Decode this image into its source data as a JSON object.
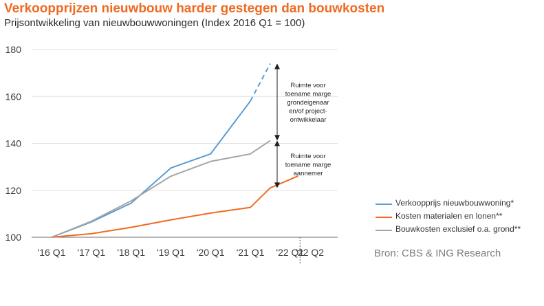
{
  "header": {
    "title": "Verkoopprijzen nieuwbouw harder gestegen dan bouwkosten",
    "subtitle": "Prijsontwikkeling van nieuwbouwwoningen  (Index 2016 Q1 = 100)"
  },
  "chart_data": {
    "type": "line",
    "categories": [
      "'16 Q1",
      "'17 Q1",
      "'18 Q1",
      "'19 Q1",
      "'20 Q1",
      "'21 Q1",
      "'22 Q1",
      "'22 Q2"
    ],
    "x": [
      0,
      1,
      2,
      3,
      4,
      5,
      6,
      6.5
    ],
    "ylim": [
      100,
      180
    ],
    "yticks": [
      100,
      120,
      140,
      160,
      180
    ],
    "grid": "horizontal",
    "legend_position": "bottom-right",
    "series": [
      {
        "name": "Verkoopprijs nieuwbouwwoning*",
        "color": "#5b9bd5",
        "x": [
          0,
          1,
          2,
          3,
          4,
          5
        ],
        "values": [
          100,
          106.5,
          114.5,
          129.5,
          135.5,
          158
        ],
        "projection": {
          "x": [
            5,
            5.5
          ],
          "values": [
            158,
            174
          ]
        }
      },
      {
        "name": "Kosten materialen en lonen**",
        "color": "#ef6a22",
        "x": [
          0,
          1,
          2,
          3,
          4,
          5,
          5.5,
          6.2
        ],
        "values": [
          100,
          101.5,
          104.2,
          107.4,
          110.3,
          112.7,
          121,
          126.1
        ]
      },
      {
        "name": "Bouwkosten exclusief o.a. grond**",
        "color": "#a6a6a6",
        "x": [
          0,
          1,
          2,
          3,
          4,
          5,
          5.5
        ],
        "values": [
          100,
          106.8,
          115.5,
          126,
          132.3,
          135.5,
          141.2
        ]
      }
    ],
    "annotations": [
      {
        "lines": [
          "Ruimte voor",
          "toename marge",
          "grondeigenaar",
          "en/of project-",
          "ontwikkelaar"
        ],
        "from": 141.2,
        "to": 174
      },
      {
        "lines": [
          "Ruimte voor",
          "toename marge",
          "aannemer"
        ],
        "from": 121,
        "to": 141.2
      }
    ],
    "divider_between": [
      "'22 Q1",
      "'22 Q2"
    ]
  },
  "source": "Bron: CBS & ING Research"
}
